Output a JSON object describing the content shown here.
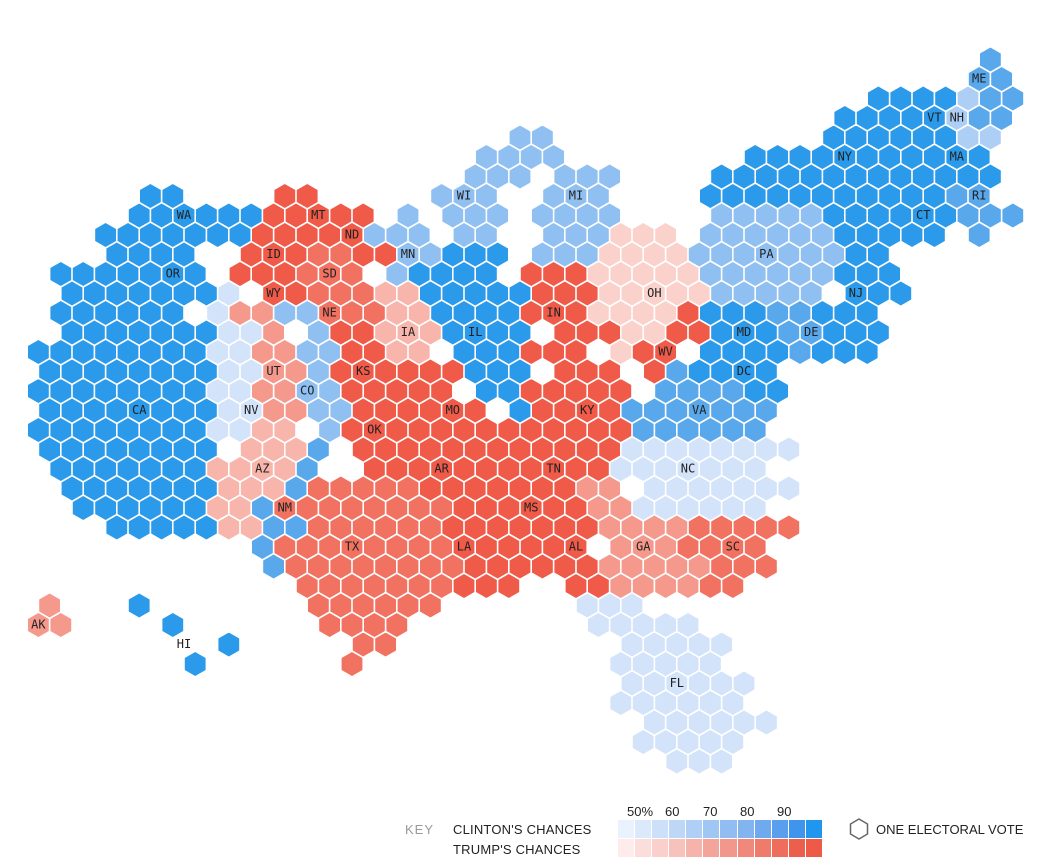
{
  "legend": {
    "key": "KEY",
    "clinton": "CLINTON'S CHANCES",
    "trump": "TRUMP'S CHANCES",
    "ticks": [
      "50%",
      "60",
      "70",
      "80",
      "90"
    ],
    "electoral_vote": "ONE ELECTORAL VOTE",
    "clinton_ramp": [
      "#e9f2fd",
      "#dbe9fb",
      "#cde0f9",
      "#bed7f7",
      "#afcff6",
      "#a0c6f4",
      "#91bdf2",
      "#82b4f0",
      "#6fa9ee",
      "#5a9fee",
      "#3f95ec",
      "#2196ee"
    ],
    "trump_ramp": [
      "#fdeceb",
      "#fbdedb",
      "#f9d0cb",
      "#f7c2bb",
      "#f6b3ab",
      "#f4a59b",
      "#f2978b",
      "#f0897b",
      "#ef7b6b",
      "#ee6d5c",
      "#ed5f4d",
      "#ee5a48"
    ]
  },
  "colors": {
    "c_solid": "#2b9aea",
    "c_likely": "#5aa8ec",
    "c_lean": "#8fc0f1",
    "c_tilt": "#aecff5",
    "c_toss": "#d2e3fa",
    "c_faint": "#e4eefc",
    "t_solid": "#f05a48",
    "t_likely": "#f27262",
    "t_lean": "#f5998c",
    "t_tilt": "#f8b5ab",
    "t_toss": "#fbd2cb"
  },
  "states": [
    {
      "abbr": "WA",
      "color": "c_solid"
    },
    {
      "abbr": "OR",
      "color": "c_solid"
    },
    {
      "abbr": "CA",
      "color": "c_solid"
    },
    {
      "abbr": "NV",
      "color": "c_toss"
    },
    {
      "abbr": "ID",
      "color": "t_solid"
    },
    {
      "abbr": "MT",
      "color": "t_solid"
    },
    {
      "abbr": "WY",
      "color": "t_solid"
    },
    {
      "abbr": "UT",
      "color": "t_lean"
    },
    {
      "abbr": "AZ",
      "color": "t_tilt"
    },
    {
      "abbr": "CO",
      "color": "c_lean"
    },
    {
      "abbr": "NM",
      "color": "c_likely"
    },
    {
      "abbr": "ND",
      "color": "t_solid"
    },
    {
      "abbr": "SD",
      "color": "t_likely"
    },
    {
      "abbr": "NE",
      "color": "t_likely"
    },
    {
      "abbr": "KS",
      "color": "t_solid"
    },
    {
      "abbr": "OK",
      "color": "t_solid"
    },
    {
      "abbr": "TX",
      "color": "t_likely"
    },
    {
      "abbr": "MN",
      "color": "c_lean"
    },
    {
      "abbr": "IA",
      "color": "t_tilt"
    },
    {
      "abbr": "MO",
      "color": "t_solid"
    },
    {
      "abbr": "AR",
      "color": "t_solid"
    },
    {
      "abbr": "LA",
      "color": "t_solid"
    },
    {
      "abbr": "WI",
      "color": "c_lean"
    },
    {
      "abbr": "IL",
      "color": "c_solid"
    },
    {
      "abbr": "MI",
      "color": "c_lean"
    },
    {
      "abbr": "IN",
      "color": "t_solid"
    },
    {
      "abbr": "OH",
      "color": "t_toss"
    },
    {
      "abbr": "KY",
      "color": "t_solid"
    },
    {
      "abbr": "TN",
      "color": "t_solid"
    },
    {
      "abbr": "MS",
      "color": "t_solid"
    },
    {
      "abbr": "AL",
      "color": "t_solid"
    },
    {
      "abbr": "GA",
      "color": "t_lean"
    },
    {
      "abbr": "FL",
      "color": "c_toss"
    },
    {
      "abbr": "SC",
      "color": "t_likely"
    },
    {
      "abbr": "NC",
      "color": "c_toss"
    },
    {
      "abbr": "VA",
      "color": "c_likely"
    },
    {
      "abbr": "WV",
      "color": "t_solid"
    },
    {
      "abbr": "PA",
      "color": "c_lean"
    },
    {
      "abbr": "MD",
      "color": "c_solid"
    },
    {
      "abbr": "DC",
      "color": "c_solid"
    },
    {
      "abbr": "DE",
      "color": "c_likely"
    },
    {
      "abbr": "NJ",
      "color": "c_solid"
    },
    {
      "abbr": "NY",
      "color": "c_solid"
    },
    {
      "abbr": "CT",
      "color": "c_solid"
    },
    {
      "abbr": "RI",
      "color": "c_likely"
    },
    {
      "abbr": "MA",
      "color": "c_solid"
    },
    {
      "abbr": "VT",
      "color": "c_solid"
    },
    {
      "abbr": "NH",
      "color": "c_tilt"
    },
    {
      "abbr": "ME",
      "color": "c_likely"
    },
    {
      "abbr": "AK",
      "color": "t_lean"
    },
    {
      "abbr": "HI",
      "color": "c_solid"
    }
  ]
}
